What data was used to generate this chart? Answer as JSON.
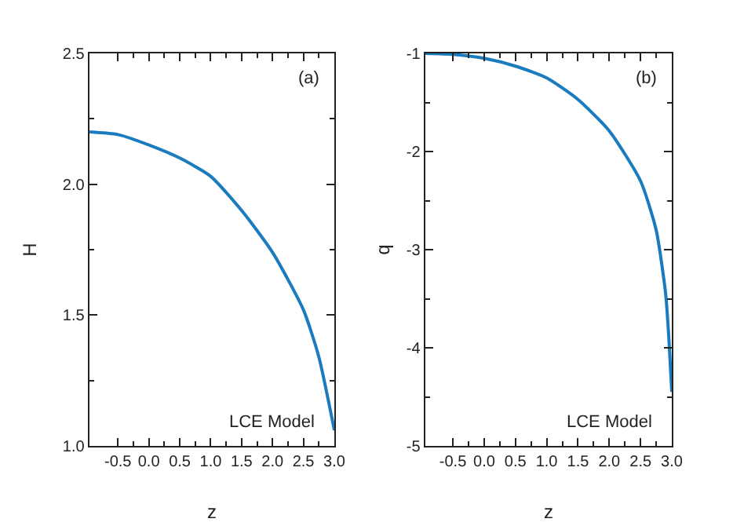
{
  "chart_data": [
    {
      "type": "line",
      "xlabel": "z",
      "ylabel": "H",
      "annotations": [
        "(a)",
        "LCE Model"
      ],
      "xlim": [
        -0.96,
        3.0
      ],
      "xticks": [
        {
          "value": -0.5,
          "label": "-0.5"
        },
        {
          "value": 0,
          "label": "0.0"
        },
        {
          "value": 0.5,
          "label": "0.5"
        },
        {
          "value": 1,
          "label": "1.0"
        },
        {
          "value": 1.5,
          "label": "1.5"
        },
        {
          "value": 2,
          "label": "2.0"
        },
        {
          "value": 2.5,
          "label": "2.5"
        },
        {
          "value": 3,
          "label": "3.0"
        }
      ],
      "ylim": [
        1.0,
        2.5
      ],
      "yticks": [
        {
          "value": 1,
          "label": "1.0"
        },
        {
          "value": 1.5,
          "label": "1.5"
        },
        {
          "value": 2,
          "label": "2.0"
        },
        {
          "value": 2.5,
          "label": "2.5"
        }
      ],
      "grid": false,
      "marker": "none",
      "line_style": "solid",
      "series": [
        {
          "color": "#1a7bbf",
          "x": [
            -0.96,
            -0.5,
            0,
            0.5,
            1.0,
            1.5,
            2.0,
            2.5,
            2.75,
            3.0
          ],
          "values": [
            2.2,
            2.19,
            2.15,
            2.1,
            2.03,
            1.9,
            1.74,
            1.52,
            1.34,
            1.06
          ]
        }
      ]
    },
    {
      "type": "line",
      "xlabel": "z",
      "ylabel": "q",
      "annotations": [
        "(b)",
        "LCE Model"
      ],
      "xlim": [
        -0.94,
        3.0
      ],
      "xticks": [
        {
          "value": -0.5,
          "label": "-0.5"
        },
        {
          "value": 0,
          "label": "0.0"
        },
        {
          "value": 0.5,
          "label": "0.5"
        },
        {
          "value": 1,
          "label": "1.0"
        },
        {
          "value": 1.5,
          "label": "1.5"
        },
        {
          "value": 2,
          "label": "2.0"
        },
        {
          "value": 2.5,
          "label": "2.5"
        },
        {
          "value": 3,
          "label": "3.0"
        }
      ],
      "ylim": [
        -5,
        -1
      ],
      "yticks": [
        -5,
        -4,
        -3,
        -2,
        -1
      ],
      "grid": false,
      "marker": "none",
      "line_style": "solid",
      "series": [
        {
          "color": "#1a7bbf",
          "x": [
            -0.94,
            -0.5,
            0,
            0.5,
            1.0,
            1.5,
            2.0,
            2.5,
            2.75,
            2.9,
            2.95,
            3.0
          ],
          "values": [
            -1.0,
            -1.01,
            -1.05,
            -1.13,
            -1.25,
            -1.47,
            -1.79,
            -2.3,
            -2.8,
            -3.44,
            -3.87,
            -4.45
          ]
        }
      ]
    }
  ]
}
